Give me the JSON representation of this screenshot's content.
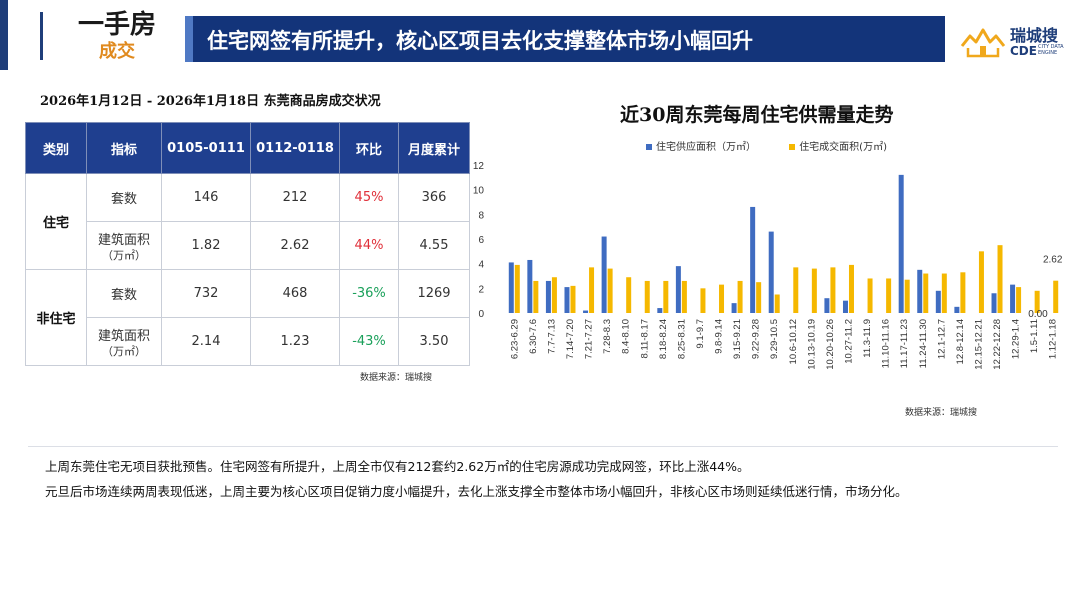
{
  "header": {
    "category_main": "一手房",
    "category_sub": "成交",
    "banner": "住宅网签有所提升，核心区项目去化支撑整体市场小幅回升",
    "logo_cn": "瑞城搜",
    "logo_en": "CDE",
    "logo_en_small": "CITY DATA ENGINE"
  },
  "table": {
    "title": "2026年1月12日 - 2026年1月18日 东莞商品房成交状况",
    "headers": [
      "类别",
      "指标",
      "0105-0111",
      "0112-0118",
      "环比",
      "月度累计"
    ],
    "rows": [
      {
        "category": "住宅",
        "indicator": "套数",
        "indicator_unit": "",
        "prev": "146",
        "curr": "212",
        "change": "45%",
        "change_dir": "up",
        "cum": "366"
      },
      {
        "category": "",
        "indicator": "建筑面积",
        "indicator_unit": "（万㎡）",
        "prev": "1.82",
        "curr": "2.62",
        "change": "44%",
        "change_dir": "up",
        "cum": "4.55"
      },
      {
        "category": "非住宅",
        "indicator": "套数",
        "indicator_unit": "",
        "prev": "732",
        "curr": "468",
        "change": "-36%",
        "change_dir": "down",
        "cum": "1269"
      },
      {
        "category": "",
        "indicator": "建筑面积",
        "indicator_unit": "（万㎡）",
        "prev": "2.14",
        "curr": "1.23",
        "change": "-43%",
        "change_dir": "down",
        "cum": "3.50"
      }
    ],
    "source": "数据来源：瑞城搜"
  },
  "chart_data": {
    "type": "bar",
    "title": "近30周东莞每周住宅供需量走势",
    "categories": [
      "6.23-6.29",
      "6.30-7.6",
      "7.7-7.13",
      "7.14-7.20",
      "7.21-7.27",
      "7.28-8.3",
      "8.4-8.10",
      "8.11-8.17",
      "8.18-8.24",
      "8.25-8.31",
      "9.1-9.7",
      "9.8-9.14",
      "9.15-9.21",
      "9.22-9.28",
      "9.29-10.5",
      "10.6-10.12",
      "10.13-10.19",
      "10.20-10.26",
      "10.27-11.2",
      "11.3-11.9",
      "11.10-11.16",
      "11.17-11.23",
      "11.24-11.30",
      "12.1-12.7",
      "12.8-12.14",
      "12.15-12.21",
      "12.22-12.28",
      "12.29-1.4",
      "1.5-1.11",
      "1.12-1.18"
    ],
    "series": [
      {
        "name": "住宅供应面积（万㎡）",
        "color": "#3f6cc1",
        "values": [
          4.1,
          4.3,
          2.6,
          2.1,
          0.2,
          6.2,
          0,
          0,
          0.4,
          3.8,
          0,
          0,
          0.8,
          8.6,
          6.6,
          0,
          0,
          1.2,
          1.0,
          0,
          0,
          11.2,
          3.5,
          1.8,
          0.5,
          0,
          1.6,
          2.3,
          0,
          0
        ]
      },
      {
        "name": "住宅成交面积(万㎡)",
        "color": "#f5b800",
        "values": [
          3.9,
          2.6,
          2.9,
          2.2,
          3.7,
          3.6,
          2.9,
          2.6,
          2.6,
          2.6,
          2.0,
          2.3,
          2.6,
          2.5,
          1.5,
          3.7,
          3.6,
          3.7,
          3.9,
          2.8,
          2.8,
          2.7,
          3.2,
          3.2,
          3.3,
          5.0,
          5.5,
          2.1,
          1.8,
          2.62
        ]
      }
    ],
    "ylim": [
      0,
      12
    ],
    "yticks": [
      "0",
      "2",
      "4",
      "6",
      "8",
      "10",
      "12"
    ],
    "annotations": [
      {
        "label": "2.62",
        "series": 1,
        "index": 29
      },
      {
        "label": "0.00",
        "series": 0,
        "index": 29
      }
    ],
    "grid": false,
    "legend": "top",
    "source": "数据来源：瑞城搜"
  },
  "summary": {
    "line1": "上周东莞住宅无项目获批预售。住宅网签有所提升，上周全市仅有212套约2.62万㎡的住宅房源成功完成网签，环比上涨44%。",
    "line2": "元旦后市场连续两周表现低迷，上周主要为核心区项目促销力度小幅提升，去化上涨支撑全市整体市场小幅回升，非核心区市场则延续低迷行情，市场分化。"
  }
}
